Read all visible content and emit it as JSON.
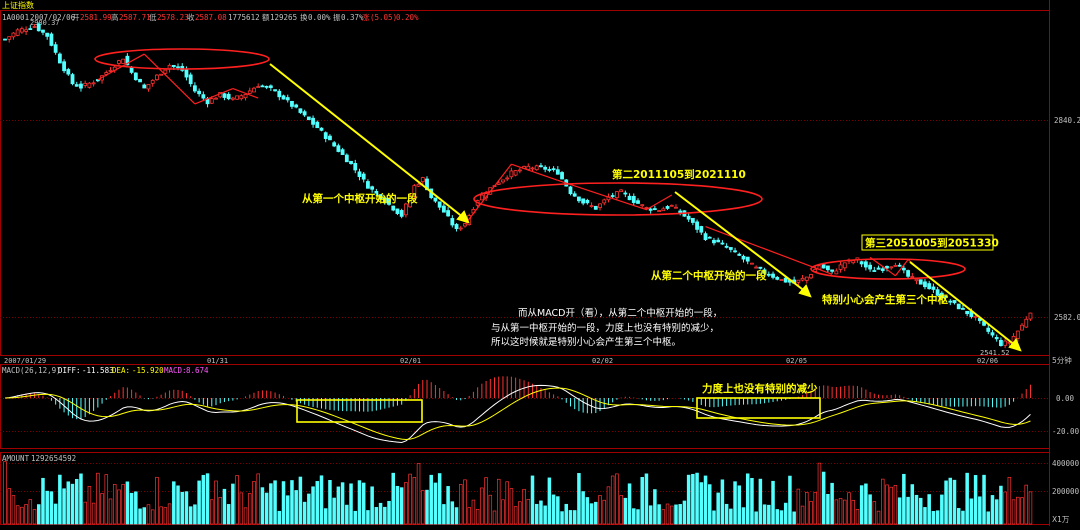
{
  "window": {
    "title": "上证指数",
    "code": "1A0001",
    "date": "2007/02/06",
    "open_label": "开",
    "open": "2581.99",
    "high_label": "高",
    "high": "2587.71",
    "low_label": "低",
    "low": "2578.23",
    "close_label": "收",
    "close": "2587.08",
    "volume": "1775612",
    "amount_label": "额",
    "amount": "129265",
    "turnover_label": "换",
    "turnover": "0.00%",
    "amplitude_label": "振",
    "amplitude": "0.37%",
    "change_label": "涨",
    "change": "(5.05)",
    "change_pct": "0.20%",
    "period": "5分钟"
  },
  "colors": {
    "up": "#ff3232",
    "down": "#54ffff",
    "annotation": "#ffff00",
    "ellipse": "#ff2020",
    "diff": "#ffffff",
    "dea": "#ffff00",
    "grid": "#8b0000",
    "axis_text": "#c0c0c0"
  },
  "price_panel": {
    "axis_labels": [
      "2840.2",
      "2582.0"
    ],
    "max_label": "2980.37",
    "min_label": "2541.52"
  },
  "x_axis": {
    "labels": [
      "2007/01/29",
      "01/31",
      "02/01",
      "02/02",
      "02/05",
      "02/06"
    ]
  },
  "macd_panel": {
    "header": "MACD(26,12,9)",
    "diff_label": "DIFF:",
    "diff": "-11.583",
    "dea_label": "DEA:",
    "dea": "-15.920",
    "macd_label": "MACD:",
    "macd": "8.674",
    "axis_labels": [
      "0.00",
      "-20.00"
    ]
  },
  "amount_panel": {
    "header": "AMOUNT",
    "value": "1292654592",
    "axis_labels": [
      "400000",
      "200000"
    ],
    "unit": "X1万"
  },
  "annotations": {
    "first_segment": "从第一个中枢开始的一段",
    "second_center": "第二2011105到2021110",
    "second_segment": "从第二个中枢开始的一段",
    "third_center": "第三2051005到2051330",
    "third_hint": "特别小心会产生第三个中枢",
    "commentary": [
      "而从MACD开（看），从第二个中枢开始的一段，",
      "与从第一中枢开始的一段，力度上也没有特别的减少，",
      "所以这时候就是特别小心会产生第三个中枢。"
    ],
    "macd_note": "力度上也没有特别的减少"
  },
  "chart_data": {
    "type": "candlestick",
    "title": "上证指数",
    "symbol": "1A0001",
    "period": "5分钟",
    "price_range": [
      2530,
      3000
    ],
    "price_ticks": [
      2582.0,
      2840.2
    ],
    "max_marked": 2980.37,
    "min_marked": 2541.52,
    "close_path": [
      [
        0,
        2960
      ],
      [
        3,
        2972
      ],
      [
        7,
        2978
      ],
      [
        10,
        2965
      ],
      [
        13,
        2930
      ],
      [
        16,
        2900
      ],
      [
        18,
        2895
      ],
      [
        22,
        2905
      ],
      [
        25,
        2920
      ],
      [
        28,
        2935
      ],
      [
        30,
        2915
      ],
      [
        33,
        2893
      ],
      [
        36,
        2910
      ],
      [
        39,
        2925
      ],
      [
        42,
        2918
      ],
      [
        45,
        2890
      ],
      [
        48,
        2875
      ],
      [
        51,
        2885
      ],
      [
        54,
        2878
      ],
      [
        57,
        2886
      ],
      [
        60,
        2898
      ],
      [
        63,
        2892
      ],
      [
        66,
        2880
      ],
      [
        70,
        2860
      ],
      [
        74,
        2840
      ],
      [
        78,
        2815
      ],
      [
        82,
        2790
      ],
      [
        86,
        2760
      ],
      [
        90,
        2740
      ],
      [
        94,
        2720
      ],
      [
        97,
        2760
      ],
      [
        99,
        2770
      ],
      [
        101,
        2745
      ],
      [
        104,
        2725
      ],
      [
        107,
        2700
      ],
      [
        109,
        2710
      ],
      [
        112,
        2742
      ],
      [
        116,
        2762
      ],
      [
        120,
        2778
      ],
      [
        124,
        2786
      ],
      [
        128,
        2784
      ],
      [
        131,
        2779
      ],
      [
        134,
        2752
      ],
      [
        137,
        2738
      ],
      [
        140,
        2730
      ],
      [
        143,
        2745
      ],
      [
        146,
        2752
      ],
      [
        149,
        2740
      ],
      [
        152,
        2730
      ],
      [
        155,
        2728
      ],
      [
        158,
        2733
      ],
      [
        162,
        2715
      ],
      [
        166,
        2690
      ],
      [
        170,
        2680
      ],
      [
        174,
        2665
      ],
      [
        178,
        2648
      ],
      [
        181,
        2640
      ],
      [
        184,
        2632
      ],
      [
        187,
        2628
      ],
      [
        190,
        2636
      ],
      [
        193,
        2652
      ],
      [
        196,
        2642
      ],
      [
        199,
        2656
      ],
      [
        202,
        2660
      ],
      [
        205,
        2645
      ],
      [
        208,
        2648
      ],
      [
        211,
        2655
      ],
      [
        214,
        2637
      ],
      [
        218,
        2625
      ],
      [
        222,
        2610
      ],
      [
        226,
        2595
      ],
      [
        230,
        2580
      ],
      [
        233,
        2562
      ],
      [
        236,
        2545
      ],
      [
        238,
        2548
      ],
      [
        241,
        2570
      ],
      [
        243,
        2590
      ]
    ],
    "macd_range": [
      -30,
      20
    ],
    "amount_range": [
      0,
      450000
    ],
    "x_labels": [
      "2007/01/29",
      "01/31",
      "02/01",
      "02/02",
      "02/05",
      "02/06"
    ],
    "centers": [
      {
        "name": "第一中枢",
        "price_low": 2874,
        "price_high": 2912
      },
      {
        "name": "第二2011105到2021110",
        "price_low": 2709,
        "price_high": 2761
      },
      {
        "name": "第三2051005到2051330",
        "price_low": 2627,
        "price_high": 2659
      }
    ]
  }
}
